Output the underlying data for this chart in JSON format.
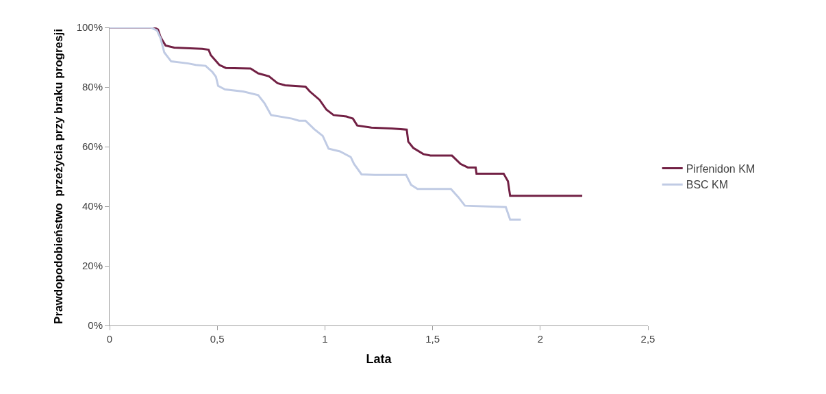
{
  "chart_data": {
    "type": "line",
    "xlabel": "Lata",
    "ylabel": "Prawdopodobieństwo  przeżycia przy braku progresji",
    "xlim": [
      0,
      2.5
    ],
    "xticks": [
      0,
      {
        "value": 0.5,
        "label": "0,5"
      },
      1,
      {
        "value": 1.5,
        "label": "1,5"
      },
      2,
      {
        "value": 2.5,
        "label": "2,5"
      }
    ],
    "ylim": [
      0,
      100
    ],
    "yticks": [
      {
        "value": 0,
        "label": "0%"
      },
      {
        "value": 20,
        "label": "20%"
      },
      {
        "value": 40,
        "label": "40%"
      },
      {
        "value": 60,
        "label": "60%"
      },
      {
        "value": 80,
        "label": "80%"
      },
      {
        "value": 100,
        "label": "100%"
      }
    ],
    "grid": false,
    "legend": "right",
    "marker": "none",
    "line_style": "solid",
    "series": [
      {
        "name": "Pirfenidon KM",
        "color": "#722044",
        "x": [
          0,
          0.205,
          0.225,
          0.237,
          0.26,
          0.3,
          0.43,
          0.46,
          0.47,
          0.51,
          0.54,
          0.655,
          0.69,
          0.74,
          0.78,
          0.815,
          0.91,
          0.93,
          0.975,
          1.007,
          1.04,
          1.1,
          1.13,
          1.15,
          1.216,
          1.31,
          1.38,
          1.387,
          1.41,
          1.457,
          1.49,
          1.59,
          1.63,
          1.664,
          1.7,
          1.704,
          1.83,
          1.85,
          1.86,
          2.195
        ],
        "values": [
          100,
          100,
          99.3,
          96.7,
          93.9,
          93.2,
          92.8,
          92.5,
          90.7,
          87.4,
          86.4,
          86.2,
          84.6,
          83.6,
          81.3,
          80.6,
          80.1,
          78.5,
          75.7,
          72.4,
          70.6,
          70.1,
          69.4,
          67.1,
          66.4,
          66.1,
          65.7,
          61.7,
          59.6,
          57.5,
          57.0,
          57.0,
          54.2,
          53.0,
          53.0,
          50.9,
          50.9,
          48.4,
          43.5,
          43.5
        ]
      },
      {
        "name": "BSC KM",
        "color": "#c0cbe4",
        "x": [
          0,
          0.19,
          0.22,
          0.237,
          0.254,
          0.286,
          0.366,
          0.4,
          0.446,
          0.478,
          0.494,
          0.504,
          0.536,
          0.62,
          0.69,
          0.72,
          0.75,
          0.847,
          0.88,
          0.91,
          0.95,
          0.99,
          1.017,
          1.07,
          1.12,
          1.135,
          1.17,
          1.232,
          1.377,
          1.4,
          1.43,
          1.585,
          1.62,
          1.65,
          1.84,
          1.86,
          1.91
        ],
        "values": [
          100,
          100,
          99,
          96.3,
          91.6,
          88.6,
          87.9,
          87.4,
          87.1,
          85.0,
          83.4,
          80.4,
          79.2,
          78.5,
          77.3,
          74.5,
          70.6,
          69.4,
          68.7,
          68.7,
          65.9,
          63.6,
          59.3,
          58.4,
          56.5,
          54.2,
          50.7,
          50.5,
          50.5,
          47.2,
          45.8,
          45.8,
          43.0,
          40.2,
          39.7,
          35.5,
          35.5
        ]
      }
    ]
  }
}
